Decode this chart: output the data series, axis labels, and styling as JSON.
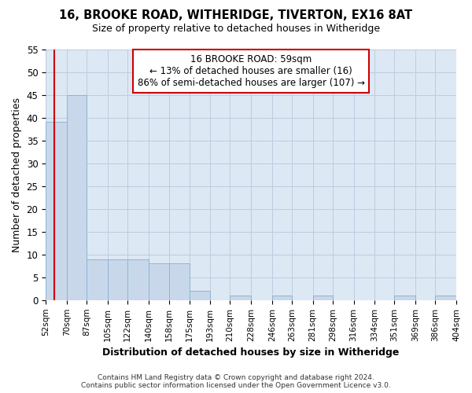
{
  "title1": "16, BROOKE ROAD, WITHERIDGE, TIVERTON, EX16 8AT",
  "title2": "Size of property relative to detached houses in Witheridge",
  "xlabel": "Distribution of detached houses by size in Witheridge",
  "ylabel": "Number of detached properties",
  "categories": [
    "52sqm",
    "70sqm",
    "87sqm",
    "105sqm",
    "122sqm",
    "140sqm",
    "158sqm",
    "175sqm",
    "193sqm",
    "210sqm",
    "228sqm",
    "246sqm",
    "263sqm",
    "281sqm",
    "298sqm",
    "316sqm",
    "334sqm",
    "351sqm",
    "369sqm",
    "386sqm",
    "404sqm"
  ],
  "bin_edges": [
    52,
    70,
    87,
    105,
    122,
    140,
    158,
    175,
    193,
    210,
    228,
    246,
    263,
    281,
    298,
    316,
    334,
    351,
    369,
    386,
    404
  ],
  "bar_heights": [
    39,
    45,
    9,
    9,
    9,
    8,
    8,
    2,
    0,
    1,
    0,
    1,
    0,
    1,
    0,
    0,
    0,
    1,
    0,
    1
  ],
  "bar_color": "#c8d8ea",
  "bar_edge_color": "#8db4d4",
  "grid_color": "#c0cce0",
  "plot_bg_color": "#dce8f4",
  "fig_bg_color": "#ffffff",
  "property_size": 59,
  "vline_color": "#cc0000",
  "annotation_line1": "16 BROOKE ROAD: 59sqm",
  "annotation_line2": "← 13% of detached houses are smaller (16)",
  "annotation_line3": "86% of semi-detached houses are larger (107) →",
  "annotation_box_color": "white",
  "annotation_box_edge": "#cc0000",
  "ylim": [
    0,
    55
  ],
  "yticks": [
    0,
    5,
    10,
    15,
    20,
    25,
    30,
    35,
    40,
    45,
    50,
    55
  ],
  "footer": "Contains HM Land Registry data © Crown copyright and database right 2024.\nContains public sector information licensed under the Open Government Licence v3.0."
}
